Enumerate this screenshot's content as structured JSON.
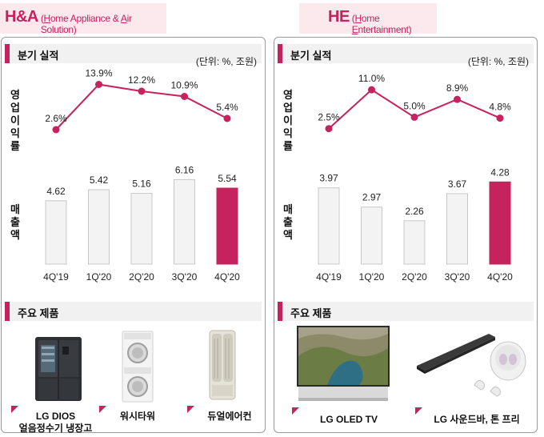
{
  "segments": {
    "ha": {
      "name": "H&A",
      "full_name_parts": [
        "(",
        "H",
        "ome Appliance & ",
        "A",
        "ir Solution)"
      ],
      "section_title": "분기 실적",
      "unit": "(단위: %, 조원)",
      "op_margin_label": "영업이익률",
      "sales_label": "매출액",
      "products_title": "주요 제품",
      "products": [
        {
          "name": "LG DIOS\n얼음정수기 냉장고",
          "icon": "fridge-icon"
        },
        {
          "name": "워시타워",
          "icon": "washtower-icon"
        },
        {
          "name": "듀얼에어컨",
          "icon": "air-conditioner-icon"
        }
      ]
    },
    "he": {
      "name": "HE",
      "full_name_parts": [
        "(",
        "H",
        "ome ",
        "E",
        "ntertainment)"
      ],
      "section_title": "분기 실적",
      "unit": "(단위: %, 조원)",
      "op_margin_label": "영업이익률",
      "sales_label": "매출액",
      "products_title": "주요 제품",
      "products": [
        {
          "name": "LG OLED TV",
          "icon": "oled-tv-icon"
        },
        {
          "name": "LG 사운드바, 톤 프리",
          "icon": "soundbar-icon"
        }
      ]
    }
  },
  "chart_data": [
    {
      "segment": "H&A",
      "type": "bar+line",
      "categories": [
        "4Q'19",
        "1Q'20",
        "2Q'20",
        "3Q'20",
        "4Q'20"
      ],
      "operating_margin_pct": [
        2.6,
        13.9,
        12.2,
        10.9,
        5.4
      ],
      "operating_margin_labels": [
        "2.6%",
        "13.9%",
        "12.2%",
        "10.9%",
        "5.4%"
      ],
      "sales": [
        4.62,
        5.42,
        5.16,
        6.16,
        5.54
      ],
      "sales_labels": [
        "4.62",
        "5.42",
        "5.16",
        "6.16",
        "5.54"
      ],
      "highlight_index": 4,
      "line_range": [
        0,
        16
      ],
      "bar_range": [
        0,
        7
      ],
      "colors": {
        "line": "#c5225e",
        "bar": "#f3f3f3",
        "bar_border": "#c8c8c8",
        "highlight": "#c5225e"
      }
    },
    {
      "segment": "HE",
      "type": "bar+line",
      "categories": [
        "4Q'19",
        "1Q'20",
        "2Q'20",
        "3Q'20",
        "4Q'20"
      ],
      "operating_margin_pct": [
        2.5,
        11.0,
        5.0,
        8.9,
        4.8
      ],
      "operating_margin_labels": [
        "2.5%",
        "11.0%",
        "5.0%",
        "8.9%",
        "4.8%"
      ],
      "sales": [
        3.97,
        2.97,
        2.26,
        3.67,
        4.28
      ],
      "sales_labels": [
        "3.97",
        "2.97",
        "2.26",
        "3.67",
        "4.28"
      ],
      "highlight_index": 4,
      "line_range": [
        0,
        14
      ],
      "bar_range": [
        0,
        5
      ],
      "colors": {
        "line": "#c5225e",
        "bar": "#f3f3f3",
        "bar_border": "#c8c8c8",
        "highlight": "#c5225e"
      }
    }
  ]
}
